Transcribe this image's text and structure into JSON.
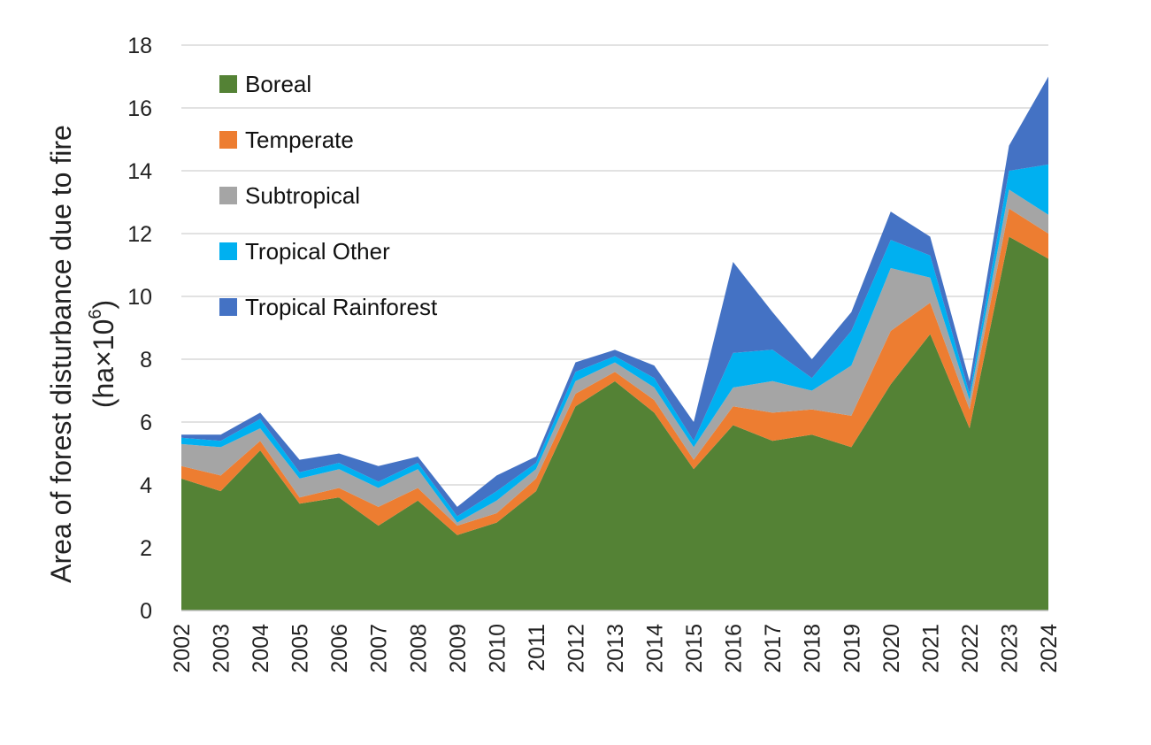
{
  "chart_data": {
    "type": "area",
    "stacked": true,
    "title": "",
    "ylabel_line1": "Area of forest disturbance due to fire",
    "ylabel_line2_prefix": "(ha×10",
    "ylabel_line2_sup": "6",
    "ylabel_line2_suffix": ")",
    "xlabel": "",
    "ylim": [
      0,
      18
    ],
    "yticks": [
      "0",
      "2",
      "4",
      "6",
      "8",
      "10",
      "12",
      "14",
      "16",
      "18"
    ],
    "grid": true,
    "legend_position": "top-left",
    "categories": [
      "2002",
      "2003",
      "2004",
      "2005",
      "2006",
      "2007",
      "2008",
      "2009",
      "2010",
      "2011",
      "2012",
      "2013",
      "2014",
      "2015",
      "2016",
      "2017",
      "2018",
      "2019",
      "2020",
      "2021",
      "2022",
      "2023",
      "2024"
    ],
    "series": [
      {
        "name": "Boreal",
        "color": "#548235",
        "values": [
          4.2,
          3.8,
          5.1,
          3.4,
          3.6,
          2.7,
          3.5,
          2.4,
          2.8,
          3.8,
          6.5,
          7.3,
          6.3,
          4.5,
          5.9,
          5.4,
          5.6,
          5.2,
          7.2,
          8.8,
          5.8,
          11.9,
          11.2
        ]
      },
      {
        "name": "Temperate",
        "color": "#ED7D31",
        "values": [
          0.4,
          0.5,
          0.3,
          0.2,
          0.3,
          0.6,
          0.4,
          0.3,
          0.3,
          0.4,
          0.4,
          0.3,
          0.4,
          0.3,
          0.6,
          0.9,
          0.8,
          1.0,
          1.7,
          1.0,
          0.6,
          0.9,
          0.8
        ]
      },
      {
        "name": "Subtropical",
        "color": "#A5A5A5",
        "values": [
          0.7,
          0.9,
          0.4,
          0.6,
          0.6,
          0.6,
          0.6,
          0.1,
          0.4,
          0.3,
          0.4,
          0.3,
          0.4,
          0.4,
          0.6,
          1.0,
          0.6,
          1.6,
          2.0,
          0.8,
          0.3,
          0.6,
          0.6
        ]
      },
      {
        "name": "Tropical Other",
        "color": "#00B0F0",
        "values": [
          0.2,
          0.2,
          0.3,
          0.2,
          0.2,
          0.2,
          0.2,
          0.2,
          0.3,
          0.2,
          0.3,
          0.2,
          0.3,
          0.2,
          1.1,
          1.0,
          0.4,
          1.1,
          0.9,
          0.7,
          0.2,
          0.6,
          1.6
        ]
      },
      {
        "name": "Tropical Rainforest",
        "color": "#4472C4",
        "values": [
          0.1,
          0.2,
          0.2,
          0.4,
          0.3,
          0.5,
          0.2,
          0.3,
          0.5,
          0.2,
          0.3,
          0.2,
          0.4,
          0.6,
          2.9,
          1.2,
          0.6,
          0.6,
          0.9,
          0.6,
          0.4,
          0.8,
          2.8
        ]
      }
    ]
  }
}
